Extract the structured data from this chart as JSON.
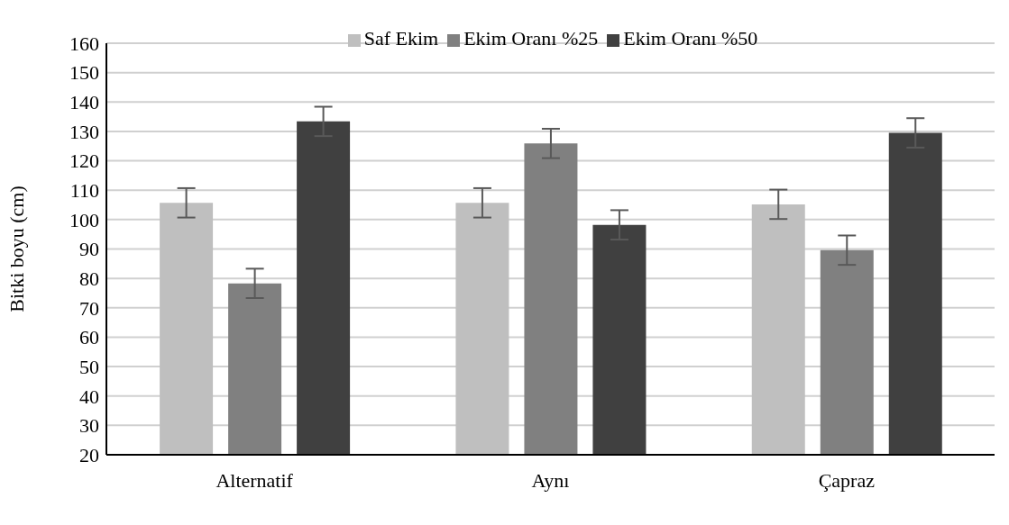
{
  "chart_data": {
    "type": "bar",
    "ylabel": "Bitki boyu (cm)",
    "categories": [
      "Alternatif",
      "Aynı",
      "Çapraz"
    ],
    "series": [
      {
        "name": "Saf Ekim",
        "color": "#bfbfbf",
        "values": [
          105.7,
          105.7,
          105.2
        ],
        "errors": [
          5,
          5,
          5
        ]
      },
      {
        "name": "Ekim Oranı %25",
        "color": "#808080",
        "values": [
          78.3,
          125.9,
          89.6
        ],
        "errors": [
          5,
          5,
          5
        ]
      },
      {
        "name": "Ekim Oranı %50",
        "color": "#404040",
        "values": [
          133.4,
          98.2,
          129.5
        ],
        "errors": [
          5,
          5,
          5
        ]
      }
    ],
    "ylim": [
      20,
      160
    ],
    "yticks": [
      20,
      30,
      40,
      50,
      60,
      70,
      80,
      90,
      100,
      110,
      120,
      130,
      140,
      150,
      160
    ],
    "grid": "y",
    "legend": "top"
  }
}
